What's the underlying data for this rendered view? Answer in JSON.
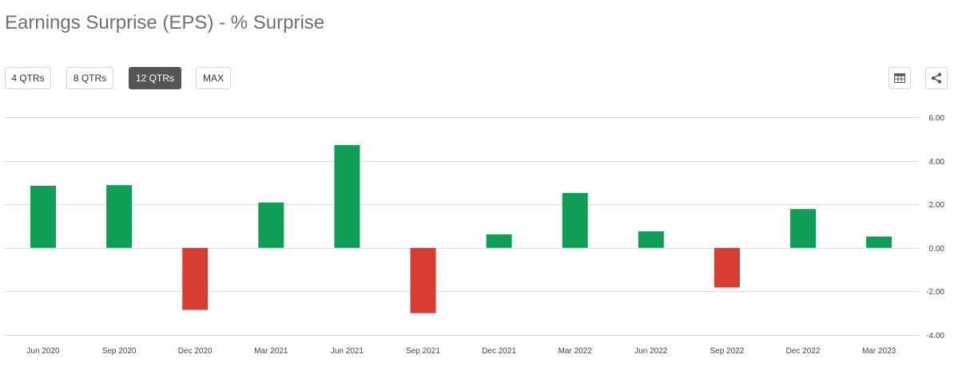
{
  "header": {
    "title": "Earnings Surprise (EPS) - % Surprise"
  },
  "toolbar": {
    "ranges": [
      {
        "label": "4 QTRs",
        "active": false
      },
      {
        "label": "8 QTRs",
        "active": false
      },
      {
        "label": "12 QTRs",
        "active": true
      },
      {
        "label": "MAX",
        "active": false
      }
    ],
    "table_icon": "table-icon",
    "share_icon": "share-icon"
  },
  "colors": {
    "positive": "#109E57",
    "negative": "#D63E31",
    "grid": "#dcdcdc"
  },
  "chart_data": {
    "type": "bar",
    "title": "Earnings Surprise (EPS) - % Surprise",
    "xlabel": "",
    "ylabel": "",
    "categories": [
      "Jun 2020",
      "Sep 2020",
      "Dec 2020",
      "Mar 2021",
      "Jun 2021",
      "Sep 2021",
      "Dec 2021",
      "Mar 2022",
      "Jun 2022",
      "Sep 2022",
      "Dec 2022",
      "Mar 2023"
    ],
    "values": [
      2.85,
      2.88,
      -2.85,
      2.08,
      4.72,
      -3.0,
      0.62,
      2.52,
      0.76,
      -1.82,
      1.78,
      0.52
    ],
    "ylim": [
      -4,
      6
    ],
    "yticks": [
      6,
      4,
      2,
      0,
      -2,
      -4
    ],
    "ytick_labels": [
      "6.00",
      "4.00",
      "2.00",
      "0.00",
      "-2.00",
      "-4.00"
    ],
    "y_axis_position": "right",
    "grid": true,
    "legend": "none"
  }
}
